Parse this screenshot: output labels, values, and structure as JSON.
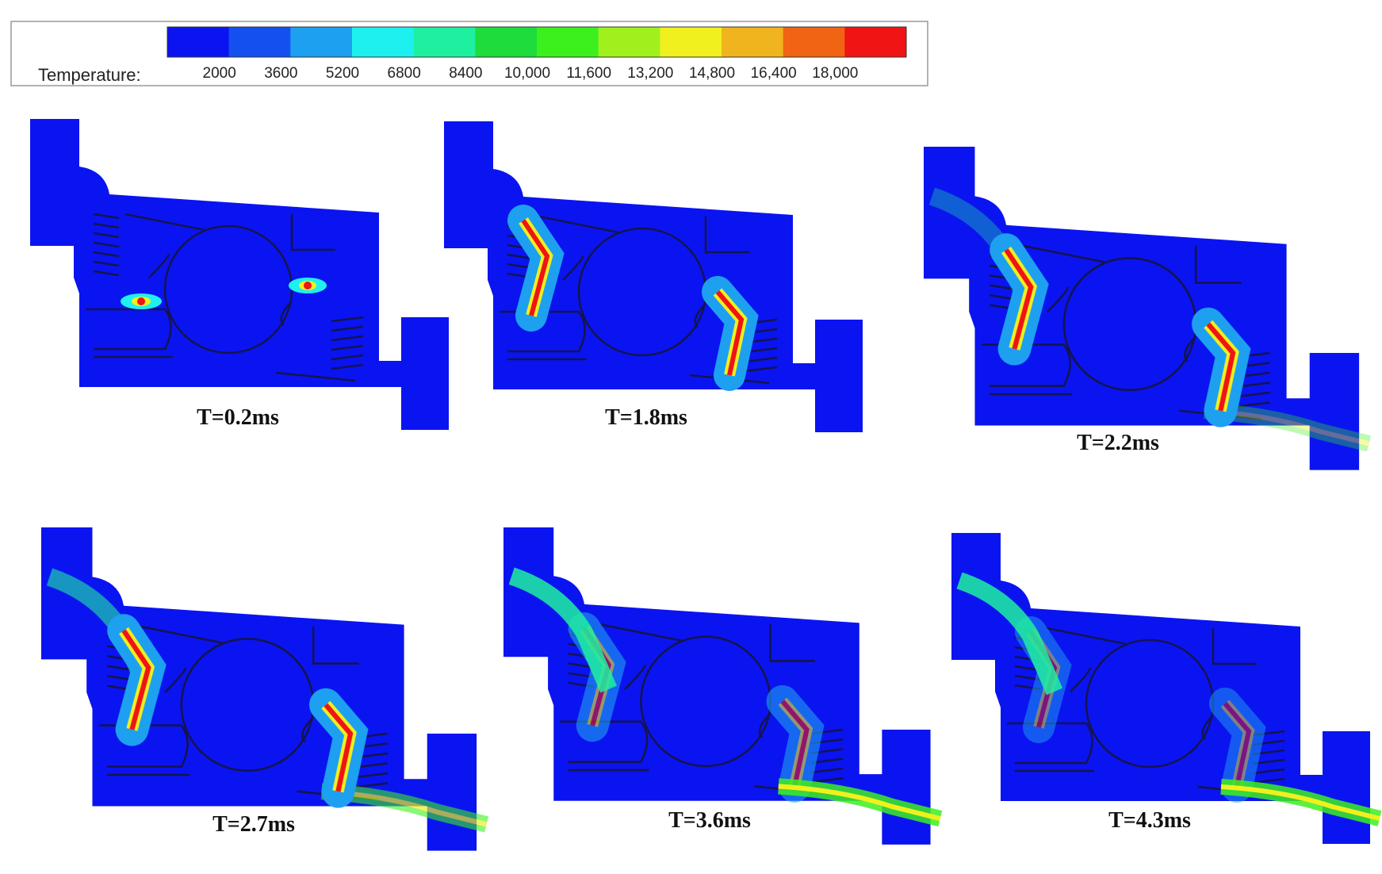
{
  "legend": {
    "label": "Temperature:",
    "ticks": [
      "2000",
      "3600",
      "5200",
      "6800",
      "8400",
      "10,000",
      "11,600",
      "13,200",
      "14,800",
      "16,400",
      "18,000"
    ],
    "colors": [
      "#0a14f0",
      "#1450f0",
      "#1ea0f0",
      "#1ef0f0",
      "#1ef0a0",
      "#1edc3c",
      "#3cf01e",
      "#a0f01e",
      "#f0f01e",
      "#f0b41e",
      "#f06414",
      "#f01414"
    ]
  },
  "panels": [
    {
      "label": "T=0.2ms"
    },
    {
      "label": "T=1.8ms"
    },
    {
      "label": "T=2.2ms"
    },
    {
      "label": "T=2.7ms"
    },
    {
      "label": "T=3.6ms"
    },
    {
      "label": "T=4.3ms"
    }
  ]
}
